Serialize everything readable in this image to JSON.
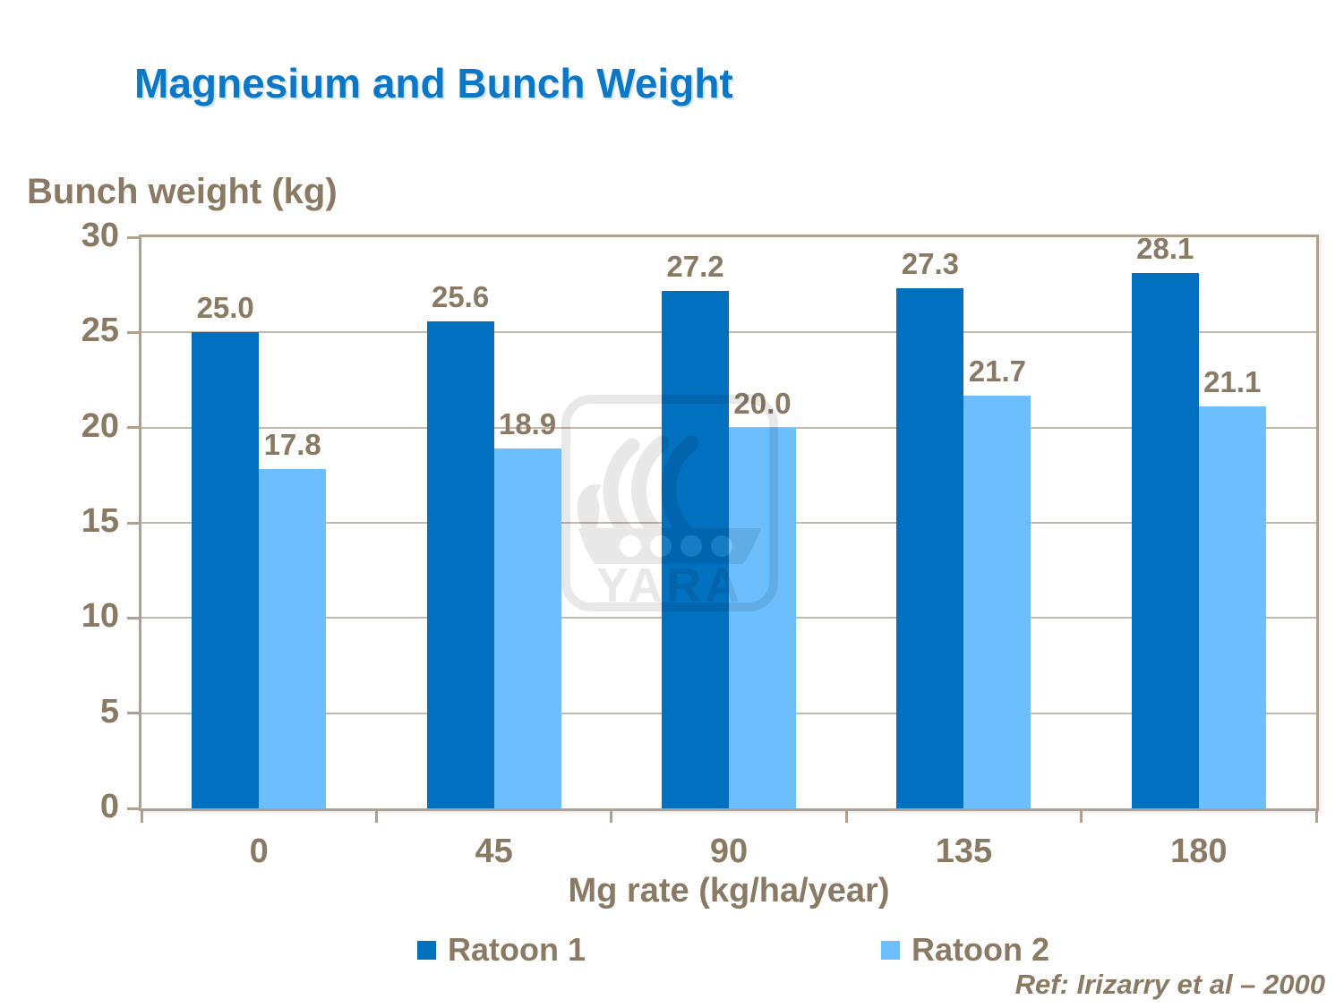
{
  "slide": {
    "title": "Magnesium and Bunch Weight",
    "reference": "Ref: Irizarry et al – 2000"
  },
  "chart_data": {
    "type": "bar",
    "title": "Magnesium and Bunch Weight",
    "ylabel": "Bunch weight (kg)",
    "xlabel": "Mg rate (kg/ha/year)",
    "categories": [
      "0",
      "45",
      "90",
      "135",
      "180"
    ],
    "series": [
      {
        "name": "Ratoon 1",
        "color": "#0070bf",
        "values": [
          25.0,
          25.6,
          27.2,
          27.3,
          28.1
        ]
      },
      {
        "name": "Ratoon 2",
        "color": "#6cbefc",
        "values": [
          17.8,
          18.9,
          20.0,
          21.7,
          21.1
        ]
      }
    ],
    "ylim": [
      0,
      30
    ],
    "yticks": [
      0,
      5,
      10,
      15,
      20,
      25,
      30
    ],
    "grid": "horizontal",
    "legend_position": "bottom",
    "value_labels": true,
    "value_label_format": "one-decimal"
  },
  "watermark": {
    "text": "YARA"
  },
  "colors": {
    "title": "#0c77c6",
    "axis_text": "#8a7a64",
    "frame": "#b0a08e",
    "gridline": "#c6b8a8",
    "background": "#ffffff"
  }
}
